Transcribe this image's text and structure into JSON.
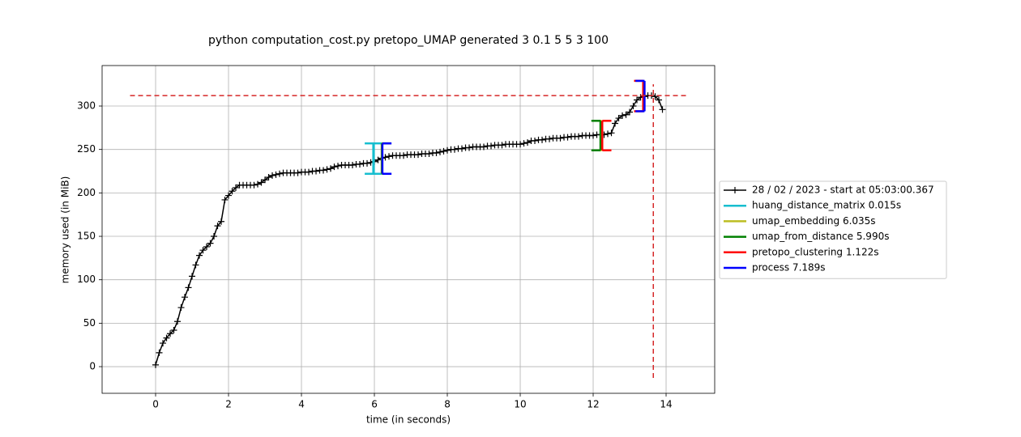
{
  "chart_data": {
    "type": "memory_profile",
    "title": "python computation_cost.py pretopo_UMAP generated 3 0.1 5 5 3 100",
    "xlabel": "time (in seconds)",
    "ylabel": "memory used (in MiB)",
    "xlim": [
      -1.467,
      15.333
    ],
    "ylim": [
      -30.7,
      346.6
    ],
    "xticks": [
      0,
      2,
      4,
      6,
      8,
      10,
      12,
      14
    ],
    "yticks": [
      0,
      50,
      100,
      150,
      200,
      250,
      300
    ],
    "grid": true,
    "legend": "outside right",
    "memory": {
      "name": "28 / 02 / 2023 - start at 05:03:00.367",
      "color": "#000000",
      "x": [
        0,
        0.1,
        0.2,
        0.3,
        0.4,
        0.5,
        0.6,
        0.7,
        0.8,
        0.9,
        1.0,
        1.1,
        1.2,
        1.3,
        1.4,
        1.5,
        1.6,
        1.7,
        1.8,
        1.9,
        2.0,
        2.1,
        2.2,
        2.3,
        2.4,
        2.5,
        2.6,
        2.7,
        2.8,
        2.9,
        3.0,
        3.1,
        3.2,
        3.3,
        3.4,
        3.5,
        3.6,
        3.7,
        3.8,
        3.9,
        4.0,
        4.1,
        4.2,
        4.3,
        4.4,
        4.5,
        4.6,
        4.7,
        4.8,
        4.9,
        5.0,
        5.1,
        5.2,
        5.3,
        5.4,
        5.5,
        5.6,
        5.7,
        5.8,
        5.9,
        6.0,
        6.1,
        6.2,
        6.3,
        6.4,
        6.5,
        6.6,
        6.7,
        6.8,
        6.9,
        7.0,
        7.1,
        7.2,
        7.3,
        7.4,
        7.5,
        7.6,
        7.7,
        7.8,
        7.9,
        8.0,
        8.1,
        8.2,
        8.3,
        8.4,
        8.5,
        8.6,
        8.7,
        8.8,
        8.9,
        9.0,
        9.1,
        9.2,
        9.3,
        9.4,
        9.5,
        9.6,
        9.7,
        9.8,
        9.9,
        10.0,
        10.1,
        10.2,
        10.3,
        10.4,
        10.5,
        10.6,
        10.7,
        10.8,
        10.9,
        11.0,
        11.1,
        11.2,
        11.3,
        11.4,
        11.5,
        11.6,
        11.7,
        11.8,
        11.9,
        12.0,
        12.1,
        12.2,
        12.3,
        12.4,
        12.5,
        12.6,
        12.7,
        12.8,
        12.9,
        13.0,
        13.1,
        13.2,
        13.3,
        13.4,
        13.5,
        13.6,
        13.7,
        13.8,
        13.9
      ],
      "values": [
        2,
        16,
        27,
        33,
        38,
        42,
        52,
        68,
        80,
        91,
        104,
        117,
        128,
        134,
        138,
        142,
        150,
        162,
        167,
        192,
        197,
        202,
        206,
        209,
        209,
        209,
        209,
        209,
        210,
        212,
        215,
        218,
        220,
        221,
        222,
        223,
        223,
        223,
        223,
        223,
        224,
        224,
        224,
        225,
        225,
        226,
        226,
        227,
        228,
        230,
        231,
        232,
        232,
        232,
        232,
        233,
        233,
        234,
        234,
        235,
        236,
        238,
        240,
        241,
        242,
        243,
        243,
        243,
        243,
        244,
        244,
        244,
        244,
        245,
        245,
        245,
        246,
        246,
        247,
        248,
        249,
        250,
        250,
        251,
        251,
        252,
        252,
        253,
        253,
        253,
        253,
        254,
        254,
        255,
        255,
        255,
        256,
        256,
        256,
        256,
        256,
        257,
        258,
        260,
        260,
        261,
        261,
        262,
        262,
        263,
        263,
        263,
        264,
        264,
        265,
        265,
        265,
        266,
        266,
        266,
        266,
        267,
        267,
        267,
        268,
        269,
        280,
        286,
        289,
        290,
        293,
        300,
        307,
        310,
        311,
        312,
        312,
        311,
        307,
        296
      ]
    },
    "functions": [
      {
        "name": "huang_distance_matrix 0.015s",
        "color": "#17becf",
        "start": 5.97,
        "end": 5.985,
        "start_range": [
          222,
          257
        ],
        "end_range": [
          222,
          257
        ]
      },
      {
        "name": "umap_embedding 6.035s",
        "color": "#bcbd22",
        "start": 6.2,
        "end": 12.235,
        "start_range": [
          222,
          257
        ],
        "end_range": [
          249,
          283
        ]
      },
      {
        "name": "umap_from_distance 5.990s",
        "color": "#008000",
        "start": 6.21,
        "end": 12.2,
        "start_range": [
          222,
          257
        ],
        "end_range": [
          249,
          283
        ]
      },
      {
        "name": "pretopo_clustering 1.122s",
        "color": "#ff0000",
        "start": 12.25,
        "end": 13.372,
        "start_range": [
          249,
          283
        ],
        "end_range": [
          294,
          329
        ]
      },
      {
        "name": "process 7.189s",
        "color": "#0000ff",
        "start": 6.22,
        "end": 13.409,
        "start_range": [
          222,
          257
        ],
        "end_range": [
          294,
          329
        ]
      }
    ],
    "max_hline": {
      "y": 312,
      "x": [
        -0.7,
        14.6
      ],
      "color": "#d62728"
    },
    "max_vline": {
      "x": 13.65,
      "y": [
        -13,
        325
      ],
      "color": "#d62728"
    }
  }
}
